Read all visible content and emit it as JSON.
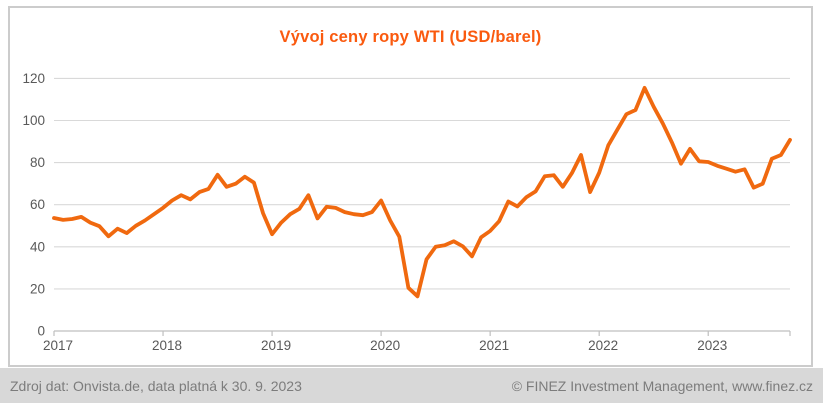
{
  "chart": {
    "title_color": "#fa5a0f",
    "border_color": "#cccccc",
    "background": "#ffffff"
  },
  "axis": {
    "label_color": "#595959",
    "line_color": "#bfbfbf",
    "grid_color": "#d9d9d9"
  },
  "chart_data": {
    "type": "line",
    "title": "Vývoj ceny ropy WTI (USD/barel)",
    "xlabel": "",
    "ylabel": "",
    "legend": "none",
    "grid": "horizontal",
    "x_start": "2016-12",
    "x_end": "2023-09",
    "points_per_year": 12,
    "x_tick_labels": [
      "2017",
      "2018",
      "2019",
      "2020",
      "2021",
      "2022",
      "2023"
    ],
    "y_ticks": [
      0,
      20,
      40,
      60,
      80,
      100,
      120
    ],
    "ylim": [
      0,
      128
    ],
    "series": [
      {
        "name": "WTI (USD/barel)",
        "color": "#f0690f",
        "values": [
          53.7,
          52.8,
          53.2,
          54.2,
          51.5,
          49.8,
          45.0,
          48.6,
          46.5,
          50.0,
          52.5,
          55.5,
          58.5,
          62.0,
          64.5,
          62.5,
          66.0,
          67.5,
          74.2,
          68.5,
          70.0,
          73.3,
          70.5,
          56.0,
          46.0,
          51.5,
          55.5,
          58.0,
          64.5,
          53.5,
          59.0,
          58.5,
          56.5,
          55.5,
          55.0,
          56.5,
          62.0,
          52.5,
          44.8,
          20.5,
          16.5,
          34.0,
          40.0,
          40.7,
          42.6,
          40.2,
          35.5,
          44.5,
          47.5,
          52.2,
          61.5,
          59.2,
          63.6,
          66.3,
          73.5,
          74.0,
          68.5,
          75.0,
          83.6,
          66.0,
          75.2,
          88.2,
          95.7,
          103.0,
          105.0,
          115.5,
          106.5,
          98.6,
          89.6,
          79.5,
          86.5,
          80.6,
          80.3,
          78.5,
          77.1,
          75.7,
          76.8,
          68.1,
          70.0,
          81.8,
          83.6,
          90.8
        ]
      }
    ]
  },
  "footer": {
    "background": "#d8d8d8",
    "text_color": "#7c7c7c",
    "source_text": "Zdroj dat: Onvista.de, data platná k 30. 9. 2023",
    "copyright_text": "© FINEZ Investment Management, www.finez.cz"
  }
}
